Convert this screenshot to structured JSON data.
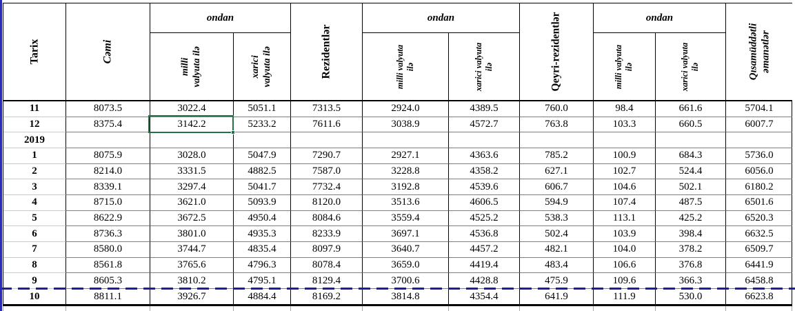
{
  "table": {
    "header": {
      "tarix": "Tarix",
      "cemi": "Cəmi",
      "ondan": "ondan",
      "sub1_milli": {
        "line1": "milli",
        "line2": "valyuta ilə"
      },
      "sub1_xarici": {
        "line1": "xarici",
        "line2": "valyuta ilə"
      },
      "rezidentler": "Rezidentlər",
      "sub2_milli": {
        "line1": "milli valyuta",
        "line2": "ilə"
      },
      "sub2_xarici": {
        "line1": "xarici valyuta",
        "line2": "ilə"
      },
      "qeyri_rezidentler": "Qeyri-rezidentlər",
      "sub3_milli": {
        "line1": "milli valyuta",
        "line2": "ilə"
      },
      "sub3_xarici": {
        "line1": "xarici valyuta",
        "line2": "ilə"
      },
      "qisamuddetli": {
        "line1": "Qısamüddətli",
        "line2": "əmanətlər"
      }
    },
    "rows": [
      {
        "label": "11",
        "values": [
          "8073.5",
          "3022.4",
          "5051.1",
          "7313.5",
          "2924.0",
          "4389.5",
          "760.0",
          "98.4",
          "661.6",
          "5704.1"
        ]
      },
      {
        "label": "12",
        "values": [
          "8375.4",
          "3142.2",
          "5233.2",
          "7611.6",
          "3038.9",
          "4572.7",
          "763.8",
          "103.3",
          "660.5",
          "6007.7"
        ]
      },
      {
        "label": "2019",
        "values": [
          "",
          "",
          "",
          "",
          "",
          "",
          "",
          "",
          "",
          ""
        ]
      },
      {
        "label": "1",
        "values": [
          "8075.9",
          "3028.0",
          "5047.9",
          "7290.7",
          "2927.1",
          "4363.6",
          "785.2",
          "100.9",
          "684.3",
          "5736.0"
        ]
      },
      {
        "label": "2",
        "values": [
          "8214.0",
          "3331.5",
          "4882.5",
          "7587.0",
          "3228.8",
          "4358.2",
          "627.1",
          "102.7",
          "524.4",
          "6056.0"
        ]
      },
      {
        "label": "3",
        "values": [
          "8339.1",
          "3297.4",
          "5041.7",
          "7732.4",
          "3192.8",
          "4539.6",
          "606.7",
          "104.6",
          "502.1",
          "6180.2"
        ]
      },
      {
        "label": "4",
        "values": [
          "8715.0",
          "3621.0",
          "5093.9",
          "8120.0",
          "3513.6",
          "4606.5",
          "594.9",
          "107.4",
          "487.5",
          "6501.6"
        ]
      },
      {
        "label": "5",
        "values": [
          "8622.9",
          "3672.5",
          "4950.4",
          "8084.6",
          "3559.4",
          "4525.2",
          "538.3",
          "113.1",
          "425.2",
          "6520.3"
        ]
      },
      {
        "label": "6",
        "values": [
          "8736.3",
          "3801.0",
          "4935.3",
          "8233.9",
          "3697.1",
          "4536.8",
          "502.4",
          "103.9",
          "398.4",
          "6632.5"
        ]
      },
      {
        "label": "7",
        "values": [
          "8580.0",
          "3744.7",
          "4835.4",
          "8097.9",
          "3640.7",
          "4457.2",
          "482.1",
          "104.0",
          "378.2",
          "6509.7"
        ]
      },
      {
        "label": "8",
        "values": [
          "8561.8",
          "3765.6",
          "4796.3",
          "8078.4",
          "3659.0",
          "4419.4",
          "483.4",
          "106.6",
          "376.8",
          "6441.9"
        ]
      },
      {
        "label": "9",
        "values": [
          "8605.3",
          "3810.2",
          "4795.1",
          "8129.4",
          "3700.6",
          "4428.8",
          "475.9",
          "109.6",
          "366.3",
          "6458.8"
        ]
      },
      {
        "label": "10",
        "values": [
          "8811.1",
          "3926.7",
          "4884.4",
          "8169.2",
          "3814.8",
          "4354.4",
          "641.9",
          "111.9",
          "530.0",
          "6623.8"
        ]
      }
    ],
    "selection": {
      "row_label": "12",
      "value": "3142.2"
    },
    "colors": {
      "selection_green": "#217346",
      "pagebreak_blue": "#1c1c9e",
      "edge_blue": "#2a2ab2",
      "grid_dark": "#000000",
      "grid_light": "#c9c9c9"
    }
  }
}
